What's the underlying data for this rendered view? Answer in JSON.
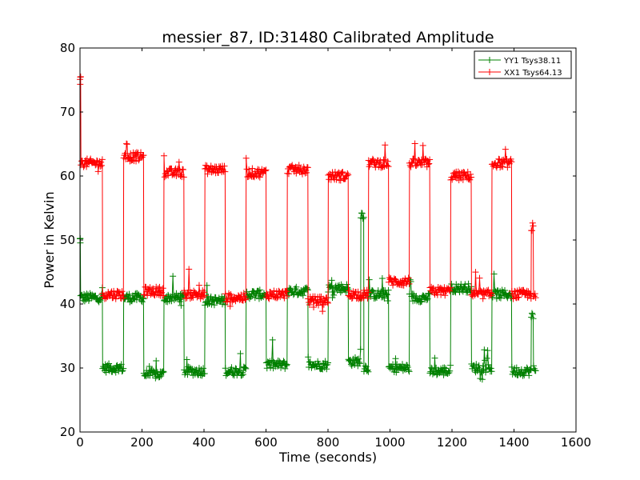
{
  "chart_data": {
    "type": "line",
    "title": "messier_87, ID:31480 Calibrated Amplitude",
    "xlabel": "Time (seconds)",
    "ylabel": "Power in Kelvin",
    "xlim": [
      0,
      1600
    ],
    "ylim": [
      20,
      80
    ],
    "xticks": [
      0,
      200,
      400,
      600,
      800,
      1000,
      1200,
      1400,
      1600
    ],
    "yticks": [
      20,
      30,
      40,
      50,
      60,
      70,
      80
    ],
    "grid": false,
    "legend_position": "top-right",
    "marker": "+",
    "series": [
      {
        "name": "YY1 Tsys38.11",
        "color": "#008000",
        "segments": [
          {
            "x0": 0,
            "x1": 1,
            "y": 50
          },
          {
            "x0": 2,
            "x1": 72,
            "y": 41
          },
          {
            "x0": 73,
            "x1": 140,
            "y": 30
          },
          {
            "x0": 141,
            "x1": 205,
            "y": 41
          },
          {
            "x0": 206,
            "x1": 270,
            "y": 29
          },
          {
            "x0": 271,
            "x1": 335,
            "y": 41
          },
          {
            "x0": 336,
            "x1": 402,
            "y": 29.5
          },
          {
            "x0": 403,
            "x1": 468,
            "y": 40.5
          },
          {
            "x0": 469,
            "x1": 535,
            "y": 29.5
          },
          {
            "x0": 536,
            "x1": 600,
            "y": 41.5
          },
          {
            "x0": 601,
            "x1": 668,
            "y": 30.5
          },
          {
            "x0": 669,
            "x1": 735,
            "y": 42
          },
          {
            "x0": 736,
            "x1": 800,
            "y": 30.5
          },
          {
            "x0": 801,
            "x1": 865,
            "y": 42.5
          },
          {
            "x0": 866,
            "x1": 905,
            "y": 31
          },
          {
            "x0": 906,
            "x1": 915,
            "y": 54
          },
          {
            "x0": 916,
            "x1": 930,
            "y": 30
          },
          {
            "x0": 931,
            "x1": 995,
            "y": 41.5
          },
          {
            "x0": 996,
            "x1": 1062,
            "y": 30
          },
          {
            "x0": 1063,
            "x1": 1128,
            "y": 41
          },
          {
            "x0": 1129,
            "x1": 1195,
            "y": 29.5
          },
          {
            "x0": 1196,
            "x1": 1262,
            "y": 42.5
          },
          {
            "x0": 1263,
            "x1": 1328,
            "y": 30
          },
          {
            "x0": 1329,
            "x1": 1392,
            "y": 41.5
          },
          {
            "x0": 1393,
            "x1": 1455,
            "y": 29.5
          },
          {
            "x0": 1456,
            "x1": 1462,
            "y": 38
          },
          {
            "x0": 1463,
            "x1": 1470,
            "y": 30
          }
        ]
      },
      {
        "name": "XX1 Tsys64.13",
        "color": "#ff0000",
        "segments": [
          {
            "x0": 0,
            "x1": 2,
            "y": 75
          },
          {
            "x0": 3,
            "x1": 72,
            "y": 62
          },
          {
            "x0": 73,
            "x1": 140,
            "y": 41.5
          },
          {
            "x0": 141,
            "x1": 205,
            "y": 63
          },
          {
            "x0": 206,
            "x1": 270,
            "y": 42
          },
          {
            "x0": 271,
            "x1": 335,
            "y": 60.5
          },
          {
            "x0": 336,
            "x1": 402,
            "y": 41.5
          },
          {
            "x0": 403,
            "x1": 468,
            "y": 61
          },
          {
            "x0": 469,
            "x1": 535,
            "y": 41
          },
          {
            "x0": 536,
            "x1": 600,
            "y": 60.5
          },
          {
            "x0": 601,
            "x1": 668,
            "y": 41.5
          },
          {
            "x0": 669,
            "x1": 735,
            "y": 61
          },
          {
            "x0": 736,
            "x1": 800,
            "y": 40.5
          },
          {
            "x0": 801,
            "x1": 865,
            "y": 60
          },
          {
            "x0": 866,
            "x1": 930,
            "y": 41.5
          },
          {
            "x0": 931,
            "x1": 995,
            "y": 62
          },
          {
            "x0": 996,
            "x1": 1062,
            "y": 43.5
          },
          {
            "x0": 1063,
            "x1": 1128,
            "y": 62
          },
          {
            "x0": 1129,
            "x1": 1195,
            "y": 42
          },
          {
            "x0": 1196,
            "x1": 1262,
            "y": 60
          },
          {
            "x0": 1263,
            "x1": 1328,
            "y": 41.5
          },
          {
            "x0": 1329,
            "x1": 1392,
            "y": 62
          },
          {
            "x0": 1393,
            "x1": 1455,
            "y": 41.5
          },
          {
            "x0": 1456,
            "x1": 1462,
            "y": 52
          },
          {
            "x0": 1463,
            "x1": 1470,
            "y": 41
          }
        ]
      }
    ]
  }
}
